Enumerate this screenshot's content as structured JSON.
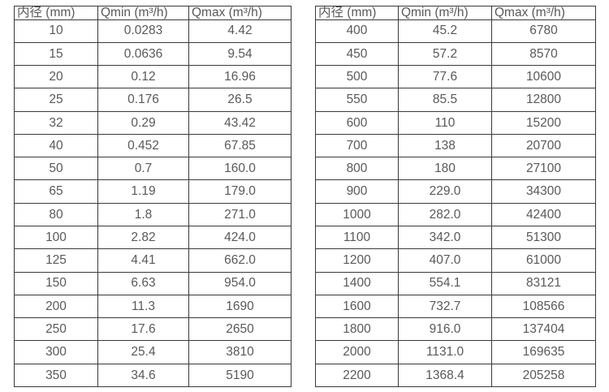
{
  "colors": {
    "background": "#ffffff",
    "border": "#3a3a3a",
    "text": "#595959"
  },
  "tables": [
    {
      "id": "small-diameters",
      "headers": [
        "内径 (mm)",
        "Qmin (m³/h)",
        "Qmax (m³/h)"
      ],
      "rows": [
        [
          "10",
          "0.0283",
          "4.42"
        ],
        [
          "15",
          "0.0636",
          "9.54"
        ],
        [
          "20",
          "0.12",
          "16.96"
        ],
        [
          "25",
          "0.176",
          "26.5"
        ],
        [
          "32",
          "0.29",
          "43.42"
        ],
        [
          "40",
          "0.452",
          "67.85"
        ],
        [
          "50",
          "0.7",
          "160.0"
        ],
        [
          "65",
          "1.19",
          "179.0"
        ],
        [
          "80",
          "1.8",
          "271.0"
        ],
        [
          "100",
          "2.82",
          "424.0"
        ],
        [
          "125",
          "4.41",
          "662.0"
        ],
        [
          "150",
          "6.63",
          "954.0"
        ],
        [
          "200",
          "11.3",
          "1690"
        ],
        [
          "250",
          "17.6",
          "2650"
        ],
        [
          "300",
          "25.4",
          "3810"
        ],
        [
          "350",
          "34.6",
          "5190"
        ]
      ]
    },
    {
      "id": "large-diameters",
      "headers": [
        "内径 (mm)",
        "Qmin (m³/h)",
        "Qmax (m³/h)"
      ],
      "rows": [
        [
          "400",
          "45.2",
          "6780"
        ],
        [
          "450",
          "57.2",
          "8570"
        ],
        [
          "500",
          "77.6",
          "10600"
        ],
        [
          "550",
          "85.5",
          "12800"
        ],
        [
          "600",
          "110",
          "15200"
        ],
        [
          "700",
          "138",
          "20700"
        ],
        [
          "800",
          "180",
          "27100"
        ],
        [
          "900",
          "229.0",
          "34300"
        ],
        [
          "1000",
          "282.0",
          "42400"
        ],
        [
          "1100",
          "342.0",
          "51300"
        ],
        [
          "1200",
          "407.0",
          "61000"
        ],
        [
          "1400",
          "554.1",
          "83121"
        ],
        [
          "1600",
          "732.7",
          "108566"
        ],
        [
          "1800",
          "916.0",
          "137404"
        ],
        [
          "2000",
          "1131.0",
          "169635"
        ],
        [
          "2200",
          "1368.4",
          "205258"
        ]
      ]
    }
  ]
}
